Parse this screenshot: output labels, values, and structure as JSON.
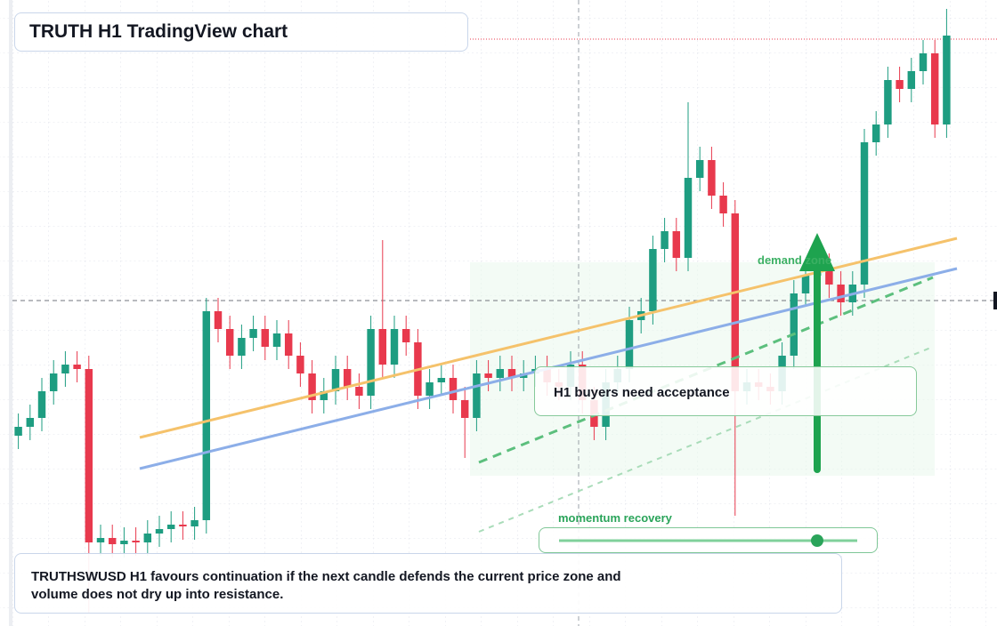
{
  "chart_data": {
    "type": "candlestick",
    "title": "TRUTH H1 TradingView chart",
    "annotations": {
      "zone": "demand zone",
      "acceptance": "H1 buyers need acceptance",
      "momentum": "momentum recovery",
      "note": "TRUTHSWUSD H1 favours continuation if the next candle defends the current price zone and volume does not dry up into resistance."
    },
    "up_color": "#1e9d81",
    "down_color": "#e8394d",
    "ylim": [
      0,
      700
    ],
    "grid": true,
    "open": [
      210,
      220,
      230,
      260,
      280,
      290,
      285,
      90,
      95,
      88,
      92,
      90,
      100,
      105,
      110,
      108,
      115,
      350,
      330,
      300,
      320,
      330,
      310,
      325,
      300,
      280,
      250,
      260,
      285,
      265,
      255,
      330,
      290,
      330,
      315,
      255,
      270,
      275,
      250,
      230,
      280,
      275,
      285,
      275,
      280,
      285,
      270,
      265,
      290,
      250,
      220,
      270,
      285,
      340,
      350,
      420,
      440,
      410,
      500,
      520,
      480,
      460,
      260,
      270,
      265,
      260,
      300,
      370,
      390,
      400,
      380,
      360,
      380,
      540,
      560,
      610,
      600,
      620,
      640,
      560
    ],
    "high": [
      235,
      245,
      275,
      295,
      305,
      305,
      300,
      110,
      110,
      107,
      107,
      115,
      120,
      125,
      125,
      130,
      365,
      365,
      345,
      335,
      345,
      345,
      340,
      340,
      315,
      295,
      275,
      300,
      300,
      280,
      345,
      430,
      345,
      345,
      330,
      285,
      290,
      290,
      265,
      295,
      295,
      300,
      300,
      295,
      300,
      300,
      285,
      305,
      305,
      265,
      285,
      300,
      355,
      365,
      435,
      455,
      455,
      585,
      535,
      535,
      495,
      475,
      285,
      285,
      280,
      315,
      385,
      405,
      415,
      415,
      395,
      395,
      555,
      575,
      625,
      625,
      635,
      655,
      655,
      690
    ],
    "low": [
      195,
      205,
      215,
      245,
      265,
      270,
      10,
      75,
      73,
      73,
      75,
      75,
      85,
      90,
      93,
      93,
      100,
      315,
      285,
      285,
      305,
      295,
      295,
      285,
      265,
      235,
      235,
      245,
      250,
      240,
      240,
      275,
      275,
      300,
      240,
      240,
      255,
      235,
      185,
      215,
      260,
      260,
      260,
      260,
      265,
      255,
      250,
      250,
      235,
      205,
      205,
      255,
      270,
      325,
      335,
      405,
      395,
      395,
      485,
      465,
      445,
      120,
      245,
      250,
      245,
      245,
      285,
      355,
      375,
      365,
      345,
      345,
      365,
      525,
      545,
      585,
      585,
      605,
      545,
      545
    ],
    "close": [
      220,
      230,
      260,
      280,
      290,
      285,
      90,
      95,
      88,
      92,
      90,
      100,
      105,
      110,
      108,
      115,
      350,
      330,
      300,
      320,
      330,
      310,
      325,
      300,
      280,
      250,
      260,
      285,
      265,
      255,
      330,
      290,
      330,
      315,
      255,
      270,
      275,
      250,
      230,
      280,
      275,
      285,
      275,
      280,
      285,
      270,
      265,
      290,
      250,
      220,
      270,
      285,
      340,
      350,
      420,
      440,
      410,
      500,
      520,
      480,
      460,
      260,
      270,
      265,
      260,
      300,
      370,
      390,
      400,
      380,
      360,
      380,
      540,
      560,
      610,
      600,
      620,
      640,
      560,
      660
    ]
  }
}
